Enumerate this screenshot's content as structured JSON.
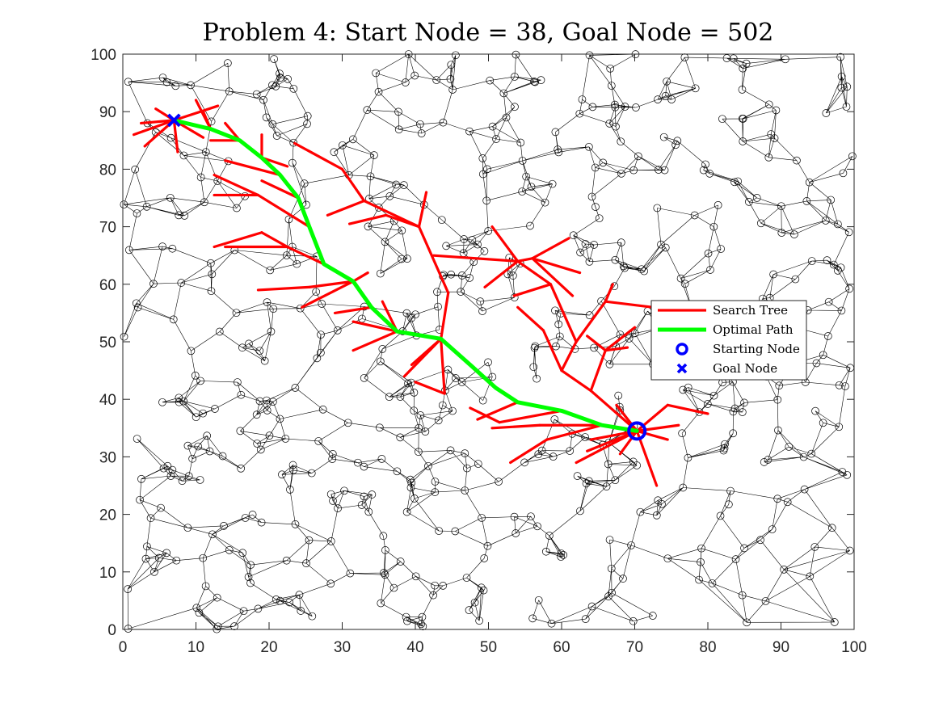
{
  "chart_data": {
    "type": "scatter",
    "title": "Problem 4: Start Node = 38, Goal Node = 502",
    "xlabel": "",
    "ylabel": "",
    "xlim": [
      0,
      100
    ],
    "ylim": [
      0,
      100
    ],
    "xticks": [
      0,
      10,
      20,
      30,
      40,
      50,
      60,
      70,
      80,
      90,
      100
    ],
    "yticks": [
      0,
      10,
      20,
      30,
      40,
      50,
      60,
      70,
      80,
      90,
      100
    ],
    "xtick_labels": [
      "0",
      "10",
      "20",
      "30",
      "40",
      "50",
      "60",
      "70",
      "80",
      "90",
      "100"
    ],
    "ytick_labels": [
      "0",
      "10",
      "20",
      "30",
      "40",
      "50",
      "60",
      "70",
      "80",
      "90",
      "100"
    ],
    "grid": false,
    "legend_position": "east",
    "legend": [
      {
        "label": "Search Tree",
        "color": "#ff0000",
        "style": "line"
      },
      {
        "label": "Optimal Path",
        "color": "#00ff00",
        "style": "line"
      },
      {
        "label": "Starting Node",
        "color": "#0000ff",
        "style": "circle"
      },
      {
        "label": "Goal Node",
        "color": "#0000ff",
        "style": "cross"
      }
    ],
    "graph": {
      "node_count_approx": 600,
      "node_color": "#000000",
      "edge_color": "#000000"
    },
    "start_node": {
      "id": 38,
      "x": 70.3,
      "y": 34.5
    },
    "goal_node": {
      "id": 502,
      "x": 7.0,
      "y": 88.5
    },
    "optimal_path": [
      [
        70.3,
        34.5
      ],
      [
        65.5,
        35.5
      ],
      [
        60.0,
        38.0
      ],
      [
        54.0,
        39.5
      ],
      [
        51.0,
        42.0
      ],
      [
        47.5,
        46.0
      ],
      [
        43.5,
        50.5
      ],
      [
        37.5,
        51.8
      ],
      [
        34.0,
        56.0
      ],
      [
        31.5,
        60.5
      ],
      [
        27.5,
        63.5
      ],
      [
        25.5,
        70.0
      ],
      [
        24.0,
        75.0
      ],
      [
        21.5,
        79.0
      ],
      [
        19.0,
        82.0
      ],
      [
        16.0,
        85.0
      ],
      [
        12.0,
        87.0
      ],
      [
        7.0,
        88.5
      ]
    ],
    "search_tree": [
      [
        [
          70.3,
          34.5
        ],
        [
          73.0,
          25.0
        ]
      ],
      [
        [
          70.3,
          34.5
        ],
        [
          74.5,
          33.0
        ]
      ],
      [
        [
          70.3,
          34.5
        ],
        [
          76.0,
          35.5
        ]
      ],
      [
        [
          70.3,
          34.5
        ],
        [
          74.5,
          39.0
        ]
      ],
      [
        [
          74.5,
          39.0
        ],
        [
          80.0,
          37.5
        ]
      ],
      [
        [
          70.3,
          34.5
        ],
        [
          67.5,
          39.0
        ]
      ],
      [
        [
          70.3,
          34.5
        ],
        [
          68.0,
          30.5
        ]
      ],
      [
        [
          70.3,
          34.5
        ],
        [
          64.0,
          33.0
        ]
      ],
      [
        [
          70.3,
          34.5
        ],
        [
          62.0,
          29.0
        ]
      ],
      [
        [
          70.3,
          34.5
        ],
        [
          63.5,
          31.0
        ]
      ],
      [
        [
          65.5,
          35.5
        ],
        [
          58.0,
          33.0
        ]
      ],
      [
        [
          65.5,
          35.5
        ],
        [
          57.0,
          35.5
        ]
      ],
      [
        [
          58.0,
          33.0
        ],
        [
          53.0,
          29.0
        ]
      ],
      [
        [
          57.0,
          35.5
        ],
        [
          50.5,
          35.0
        ]
      ],
      [
        [
          60.0,
          38.0
        ],
        [
          51.5,
          36.0
        ]
      ],
      [
        [
          54.0,
          39.5
        ],
        [
          48.5,
          36.5
        ]
      ],
      [
        [
          51.5,
          36.0
        ],
        [
          47.5,
          38.5
        ]
      ],
      [
        [
          70.3,
          34.5
        ],
        [
          64.0,
          41.5
        ]
      ],
      [
        [
          64.0,
          41.5
        ],
        [
          60.0,
          45.0
        ]
      ],
      [
        [
          60.0,
          45.0
        ],
        [
          57.5,
          52.0
        ]
      ],
      [
        [
          57.5,
          52.0
        ],
        [
          54.0,
          56.0
        ]
      ],
      [
        [
          60.0,
          45.0
        ],
        [
          62.0,
          50.0
        ]
      ],
      [
        [
          64.0,
          41.5
        ],
        [
          66.0,
          48.5
        ]
      ],
      [
        [
          66.0,
          48.5
        ],
        [
          70.0,
          52.5
        ]
      ],
      [
        [
          66.0,
          48.5
        ],
        [
          63.5,
          51.0
        ]
      ],
      [
        [
          66.0,
          48.5
        ],
        [
          69.0,
          49.0
        ]
      ],
      [
        [
          62.0,
          50.0
        ],
        [
          66.0,
          57.0
        ]
      ],
      [
        [
          66.0,
          57.0
        ],
        [
          72.5,
          56.0
        ]
      ],
      [
        [
          66.0,
          57.0
        ],
        [
          67.0,
          60.0
        ]
      ],
      [
        [
          62.0,
          50.0
        ],
        [
          58.5,
          60.0
        ]
      ],
      [
        [
          58.5,
          60.0
        ],
        [
          54.0,
          64.0
        ]
      ],
      [
        [
          58.5,
          60.0
        ],
        [
          53.5,
          58.0
        ]
      ],
      [
        [
          54.0,
          64.0
        ],
        [
          42.5,
          65.0
        ]
      ],
      [
        [
          54.0,
          64.0
        ],
        [
          49.5,
          59.5
        ]
      ],
      [
        [
          54.0,
          64.0
        ],
        [
          50.5,
          70.0
        ]
      ],
      [
        [
          54.0,
          64.0
        ],
        [
          56.0,
          64.5
        ]
      ],
      [
        [
          56.0,
          64.5
        ],
        [
          61.0,
          68.0
        ]
      ],
      [
        [
          56.0,
          64.5
        ],
        [
          62.5,
          62.0
        ]
      ],
      [
        [
          56.0,
          64.5
        ],
        [
          61.5,
          58.0
        ]
      ],
      [
        [
          43.5,
          50.5
        ],
        [
          44.5,
          58.5
        ]
      ],
      [
        [
          44.5,
          58.5
        ],
        [
          40.5,
          70.0
        ]
      ],
      [
        [
          40.5,
          70.0
        ],
        [
          36.0,
          72.0
        ]
      ],
      [
        [
          40.5,
          70.0
        ],
        [
          41.5,
          76.0
        ]
      ],
      [
        [
          40.5,
          70.0
        ],
        [
          33.0,
          74.5
        ]
      ],
      [
        [
          33.0,
          74.5
        ],
        [
          30.0,
          80.0
        ]
      ],
      [
        [
          33.0,
          74.5
        ],
        [
          28.0,
          72.0
        ]
      ],
      [
        [
          30.0,
          80.0
        ],
        [
          23.5,
          84.5
        ]
      ],
      [
        [
          36.0,
          72.0
        ],
        [
          31.0,
          70.5
        ]
      ],
      [
        [
          43.5,
          50.5
        ],
        [
          39.5,
          46.0
        ]
      ],
      [
        [
          43.5,
          50.5
        ],
        [
          38.5,
          44.0
        ]
      ],
      [
        [
          43.5,
          50.5
        ],
        [
          44.0,
          41.0
        ]
      ],
      [
        [
          44.0,
          41.0
        ],
        [
          40.0,
          43.0
        ]
      ],
      [
        [
          37.5,
          51.8
        ],
        [
          31.5,
          48.5
        ]
      ],
      [
        [
          37.5,
          51.8
        ],
        [
          31.5,
          53.5
        ]
      ],
      [
        [
          37.5,
          51.8
        ],
        [
          35.5,
          57.0
        ]
      ],
      [
        [
          34.0,
          56.0
        ],
        [
          29.0,
          55.0
        ]
      ],
      [
        [
          31.5,
          60.5
        ],
        [
          25.5,
          59.5
        ]
      ],
      [
        [
          25.5,
          59.5
        ],
        [
          18.5,
          59.0
        ]
      ],
      [
        [
          31.5,
          60.5
        ],
        [
          24.5,
          56.0
        ]
      ],
      [
        [
          31.5,
          60.5
        ],
        [
          33.5,
          62.0
        ]
      ],
      [
        [
          27.5,
          63.5
        ],
        [
          22.5,
          66.5
        ]
      ],
      [
        [
          22.5,
          66.5
        ],
        [
          14.0,
          66.5
        ]
      ],
      [
        [
          22.5,
          66.5
        ],
        [
          19.0,
          69.0
        ]
      ],
      [
        [
          19.0,
          69.0
        ],
        [
          12.5,
          66.5
        ]
      ],
      [
        [
          25.5,
          70.0
        ],
        [
          18.5,
          75.5
        ]
      ],
      [
        [
          18.5,
          75.5
        ],
        [
          12.5,
          75.5
        ]
      ],
      [
        [
          18.5,
          75.5
        ],
        [
          12.5,
          79.0
        ]
      ],
      [
        [
          24.0,
          75.0
        ],
        [
          19.0,
          78.0
        ]
      ],
      [
        [
          21.5,
          79.0
        ],
        [
          14.0,
          81.5
        ]
      ],
      [
        [
          19.0,
          82.0
        ],
        [
          19.0,
          86.0
        ]
      ],
      [
        [
          19.0,
          82.0
        ],
        [
          22.5,
          80.5
        ]
      ],
      [
        [
          16.0,
          85.0
        ],
        [
          12.0,
          85.0
        ]
      ],
      [
        [
          16.0,
          85.0
        ],
        [
          14.0,
          88.0
        ]
      ],
      [
        [
          12.0,
          87.0
        ],
        [
          11.0,
          90.0
        ]
      ],
      [
        [
          12.0,
          87.0
        ],
        [
          10.0,
          92.0
        ]
      ],
      [
        [
          7.0,
          88.5
        ],
        [
          2.5,
          88.0
        ]
      ],
      [
        [
          7.0,
          88.5
        ],
        [
          1.5,
          86.0
        ]
      ],
      [
        [
          7.0,
          88.5
        ],
        [
          3.0,
          84.0
        ]
      ],
      [
        [
          7.0,
          88.5
        ],
        [
          4.5,
          90.5
        ]
      ],
      [
        [
          7.0,
          88.5
        ],
        [
          7.5,
          83.0
        ]
      ],
      [
        [
          7.0,
          88.5
        ],
        [
          11.0,
          85.5
        ]
      ],
      [
        [
          7.0,
          88.5
        ],
        [
          13.0,
          91.0
        ]
      ]
    ]
  }
}
